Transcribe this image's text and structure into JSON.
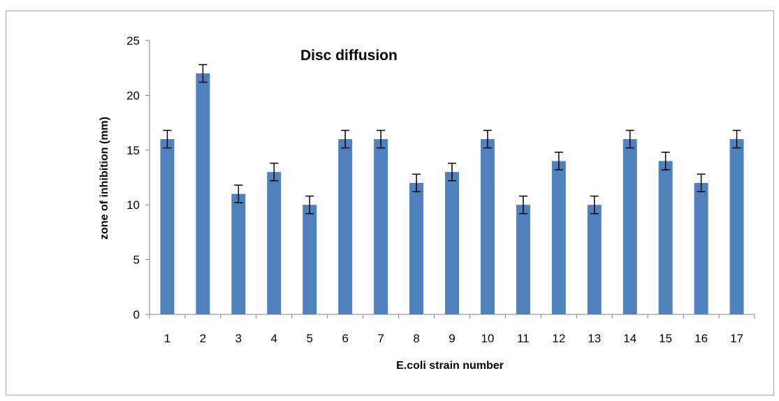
{
  "chart_data": {
    "type": "bar",
    "title": "Disc diffusion",
    "xlabel": "E.coli strain number",
    "ylabel": "zone of inhibition (mm)",
    "categories": [
      "1",
      "2",
      "3",
      "4",
      "5",
      "6",
      "7",
      "8",
      "9",
      "10",
      "11",
      "12",
      "13",
      "14",
      "15",
      "16",
      "17"
    ],
    "values": [
      16,
      22,
      11,
      13,
      10,
      16,
      16,
      12,
      13,
      16,
      10,
      14,
      10,
      16,
      14,
      12,
      16
    ],
    "error": 0.8,
    "ylim": [
      0,
      25
    ],
    "yticks": [
      0,
      5,
      10,
      15,
      20,
      25
    ],
    "grid": false,
    "legend": "none",
    "colors": {
      "bar": "#4f81bd",
      "axis": "#868686",
      "error_bar": "#000000"
    }
  }
}
